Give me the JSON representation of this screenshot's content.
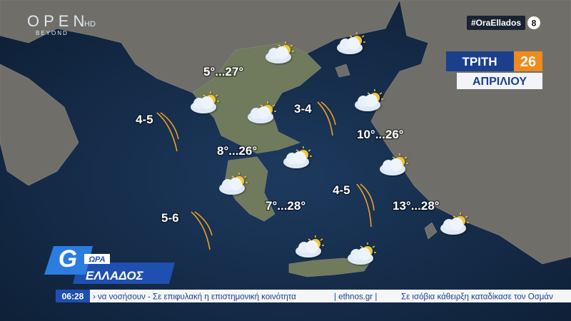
{
  "brand": {
    "name": "OPEN",
    "sub": "BEYOND",
    "hd": "HD"
  },
  "hashtag": "#OraEllados",
  "rating": "8",
  "date": {
    "weekday": "ΤΡΙΤΗ",
    "day": "26",
    "month": "ΑΠΡΙΛΙΟΥ"
  },
  "temperatures": [
    "5°...27°",
    "8°...26°",
    "7°...28°",
    "10°...26°",
    "13°...28°"
  ],
  "winds": [
    "4-5",
    "3-4",
    "4-5",
    "5-6"
  ],
  "show": {
    "line1": "ΩΡΑ",
    "line2": "ΕΛΛΑΔΟΣ"
  },
  "ticker": {
    "time": "06:28",
    "items": [
      "› να νοσήσουν - Σε επιφυλακή η επιστημονική κοινότητα",
      "| ethnos.gr |",
      "Σε ισόβια κάθειρξη καταδίκασε τον Οσμάν"
    ]
  }
}
